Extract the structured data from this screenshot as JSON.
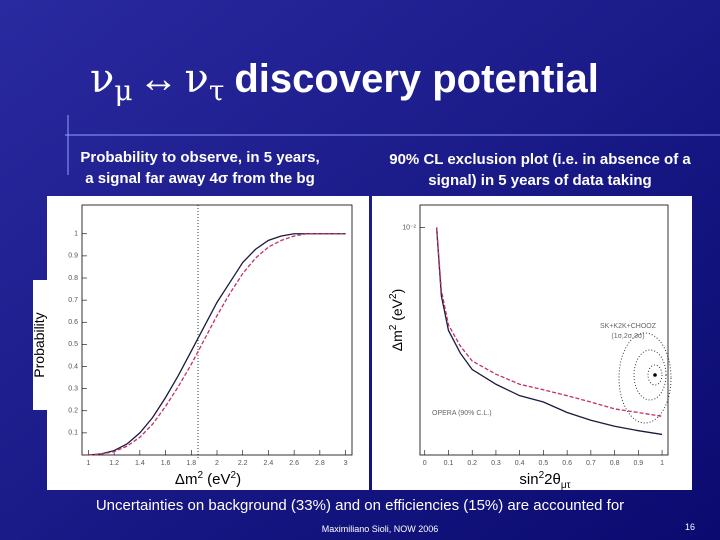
{
  "slide": {
    "title": {
      "nu1": "ν",
      "mu": "μ",
      "arrow": "↔",
      "nu2": "ν",
      "tau": "τ",
      "rest": "discovery potential"
    },
    "left_caption": [
      "Probability to observe, in 5 years,",
      "a signal far away 4σ from the bg"
    ],
    "right_caption": [
      "90% CL exclusion plot (i.e. in absence of a",
      "signal) in 5 years of data taking"
    ],
    "note": "Uncertainties on background (33%) and on efficiencies (15%) are accounted for",
    "author": "Maximiliano Sioli, NOW 2006",
    "page": "16"
  },
  "chart_data": [
    {
      "type": "line",
      "ylabel": "Probability",
      "xlabel": {
        "a": "Δm",
        "b": "2",
        "c": " (eV",
        "d": "2",
        "e": ")"
      },
      "x": [
        1,
        1.1,
        1.2,
        1.3,
        1.4,
        1.5,
        1.6,
        1.7,
        1.8,
        1.9,
        2.0,
        2.1,
        2.2,
        2.3,
        2.4,
        2.5,
        2.6,
        2.7,
        2.8,
        2.9,
        3.0
      ],
      "series": [
        {
          "color": "#1a1a3a",
          "values": [
            0,
            0.005,
            0.02,
            0.05,
            0.1,
            0.17,
            0.26,
            0.36,
            0.47,
            0.58,
            0.69,
            0.78,
            0.87,
            0.93,
            0.97,
            0.99,
            1,
            1,
            1,
            1,
            1
          ]
        },
        {
          "color": "#c0306a",
          "dashed": true,
          "values": [
            0,
            0.004,
            0.015,
            0.04,
            0.08,
            0.14,
            0.22,
            0.31,
            0.41,
            0.52,
            0.63,
            0.73,
            0.82,
            0.89,
            0.94,
            0.97,
            0.99,
            1,
            1,
            1,
            1
          ]
        }
      ],
      "xlim": [
        0.95,
        3.05
      ],
      "ylim": [
        0,
        1.13
      ],
      "xticks": [
        1,
        1.2,
        1.4,
        1.6,
        1.8,
        2,
        2.2,
        2.4,
        2.6,
        2.8,
        3
      ],
      "yticks": [
        0.1,
        0.2,
        0.3,
        0.4,
        0.5,
        0.6,
        0.7,
        0.8,
        0.9,
        1
      ]
    },
    {
      "type": "line",
      "log_y": true,
      "ylabel": {
        "a": "Δm",
        "b": "2",
        "c": " (eV",
        "d": "2",
        "e": ")"
      },
      "xlabel": {
        "a": "sin",
        "b": "2",
        "c": "2θ",
        "d": "μτ"
      },
      "annotation": [
        "SK+K2K+CHOOZ",
        "(1σ,2σ,3σ)"
      ],
      "x": [
        0.05,
        0.07,
        0.1,
        0.15,
        0.2,
        0.3,
        0.4,
        0.5,
        0.6,
        0.7,
        0.8,
        0.9,
        1.0
      ],
      "series": [
        {
          "name": "OPERA (90% C.L.)",
          "color": "#1a1a3a",
          "values": [
            0.01,
            0.0045,
            0.003,
            0.0023,
            0.0019,
            0.0016,
            0.0014,
            0.0013,
            0.00115,
            0.00105,
            0.00098,
            0.00093,
            0.00089
          ]
        },
        {
          "color": "#c0306a",
          "dashed": true,
          "values": [
            0.01,
            0.0048,
            0.0032,
            0.0025,
            0.0021,
            0.0018,
            0.0016,
            0.0015,
            0.0014,
            0.0013,
            0.0012,
            0.00115,
            0.0011
          ]
        }
      ],
      "xlim": [
        -0.02,
        1.025
      ],
      "ylim": [
        0.0007,
        0.013
      ],
      "xticks": [
        0,
        0.1,
        0.2,
        0.3,
        0.4,
        0.5,
        0.6,
        0.7,
        0.8,
        0.9,
        1
      ],
      "yticks": [
        {
          "value": 0.01,
          "label": "10⁻²"
        }
      ]
    }
  ]
}
